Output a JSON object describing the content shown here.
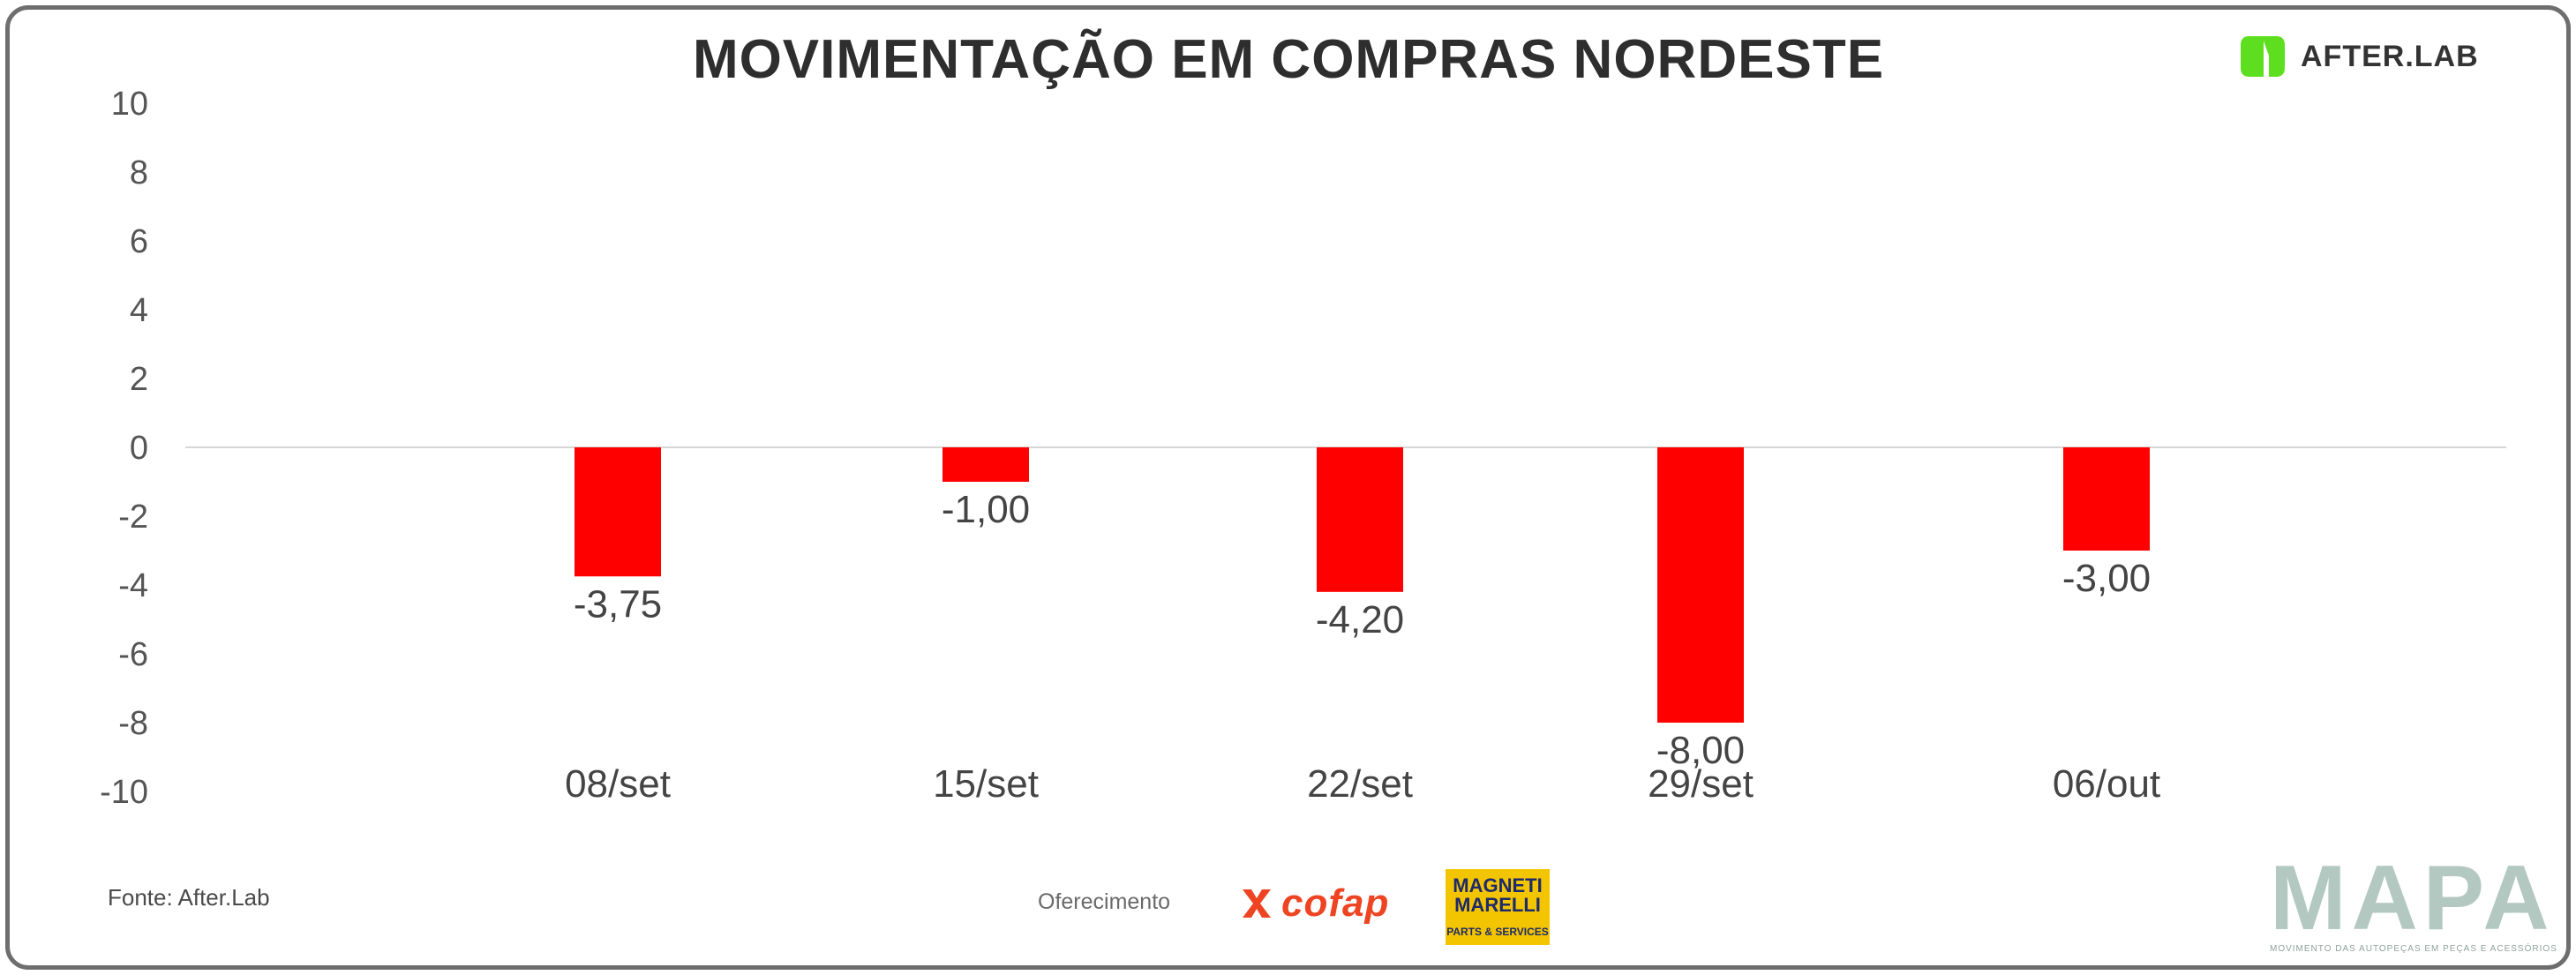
{
  "header": {
    "title": "MOVIMENTAÇÃO EM COMPRAS NORDESTE",
    "brand_logo_text": "AFTER.LAB",
    "brand_color": "#5ddf1f"
  },
  "footer": {
    "source": "Fonte: After.Lab",
    "sponsor_label": "Oferecimento",
    "sponsor_1": "cofap",
    "sponsor_2_name": "MAGNETI\nMARELLI",
    "sponsor_2_sub": "PARTS & SERVICES",
    "publisher": "MAPA",
    "publisher_tagline": "MOVIMENTO DAS AUTOPEÇAS EM PEÇAS E ACESSÓRIOS"
  },
  "chart_data": {
    "type": "bar",
    "title": "MOVIMENTAÇÃO EM COMPRAS NORDESTE",
    "categories": [
      "08/set",
      "15/set",
      "22/set",
      "29/set",
      "06/out"
    ],
    "values": [
      -3.75,
      -1.0,
      -4.2,
      -8.0,
      -3.0
    ],
    "data_labels": [
      "-3,75",
      "-1,00",
      "-4,20",
      "-8,00",
      "-3,00"
    ],
    "y_ticks": [
      "10",
      "8",
      "6",
      "4",
      "2",
      "0",
      "-2",
      "-4",
      "-6",
      "-8",
      "-10"
    ],
    "ylim": [
      -10,
      10
    ],
    "bar_color": "#ff0000",
    "xlabel": "",
    "ylabel": "",
    "grid": false,
    "legend": "none"
  }
}
